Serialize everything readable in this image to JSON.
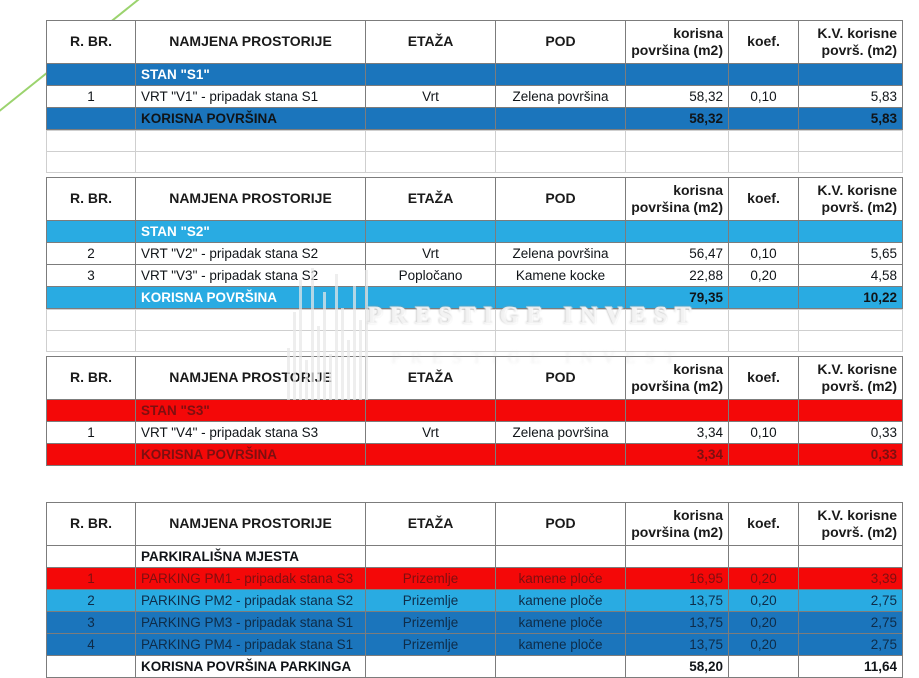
{
  "watermark": {
    "text": "PRESTIGE INVEST"
  },
  "colors": {
    "blue": "#1B75BC",
    "lblue": "#29ABE2",
    "red": "#F40808",
    "white": "#FFFFFF",
    "black": "#101418",
    "maroon": "#7E0F10",
    "navy": "#0E2C49"
  },
  "columns": [
    {
      "label": "R. BR."
    },
    {
      "label": "NAMJENA PROSTORIJE"
    },
    {
      "label": "ETAŽA"
    },
    {
      "label": "POD"
    },
    {
      "label": "korisna\npovršina (m2)"
    },
    {
      "label": "koef."
    },
    {
      "label": "K.V. korisne\npovrš. (m2)"
    }
  ],
  "tables": [
    {
      "name": "table-stan-s1",
      "gap_after": "grid",
      "rows": [
        {
          "type": "section",
          "bg": "blue",
          "color": "white",
          "cells": [
            "",
            "STAN \"S1\"",
            "",
            "",
            "",
            "",
            ""
          ]
        },
        {
          "type": "data",
          "color": "black",
          "cells": [
            "1",
            "VRT \"V1\" - pripadak stana S1",
            "Vrt",
            "Zelena površina",
            "58,32",
            "0,10",
            "5,83"
          ]
        },
        {
          "type": "summary",
          "bg": "blue",
          "color": "black",
          "cells": [
            "",
            "KORISNA POVRŠINA",
            "",
            "",
            "58,32",
            "",
            "5,83"
          ]
        }
      ]
    },
    {
      "name": "table-stan-s2",
      "gap_after": "grid",
      "rows": [
        {
          "type": "section",
          "bg": "lblue",
          "color": "white",
          "cells": [
            "",
            "STAN \"S2\"",
            "",
            "",
            "",
            "",
            ""
          ]
        },
        {
          "type": "data",
          "color": "black",
          "cells": [
            "2",
            "VRT \"V2\" - pripadak stana S2",
            "Vrt",
            "Zelena površina",
            "56,47",
            "0,10",
            "5,65"
          ]
        },
        {
          "type": "data",
          "color": "black",
          "cells": [
            "3",
            "VRT \"V3\" - pripadak stana S2",
            "Popločano",
            "Kamene kocke",
            "22,88",
            "0,20",
            "4,58"
          ]
        },
        {
          "type": "summary",
          "bg": "lblue",
          "color": "white",
          "cell_colors": [
            "",
            "white",
            "",
            "",
            "black",
            "",
            "black"
          ],
          "cells": [
            "",
            "KORISNA POVRŠINA",
            "",
            "",
            "79,35",
            "",
            "10,22"
          ]
        }
      ]
    },
    {
      "name": "table-stan-s3",
      "gap_after": "blank",
      "rows": [
        {
          "type": "section",
          "bg": "red",
          "color": "maroon",
          "cells": [
            "",
            "STAN \"S3\"",
            "",
            "",
            "",
            "",
            ""
          ]
        },
        {
          "type": "data",
          "color": "black",
          "cells": [
            "1",
            "VRT \"V4\" - pripadak stana S3",
            "Vrt",
            "Zelena površina",
            "3,34",
            "0,10",
            "0,33"
          ]
        },
        {
          "type": "summary",
          "bg": "red",
          "color": "maroon",
          "cells": [
            "",
            "KORISNA POVRŠINA",
            "",
            "",
            "3,34",
            "",
            "0,33"
          ]
        }
      ]
    },
    {
      "name": "table-parking",
      "gap_after": "none",
      "rows": [
        {
          "type": "section",
          "color": "black",
          "cells": [
            "",
            "PARKIRALIŠNA MJESTA",
            "",
            "",
            "",
            "",
            ""
          ]
        },
        {
          "type": "data",
          "bg": "red",
          "color": "maroon",
          "cells": [
            "1",
            "PARKING PM1 - pripadak stana S3",
            "Prizemlje",
            "kamene ploče",
            "16,95",
            "0,20",
            "3,39"
          ]
        },
        {
          "type": "data",
          "bg": "lblue",
          "color": "navy",
          "cells": [
            "2",
            "PARKING PM2 - pripadak stana S2",
            "Prizemlje",
            "kamene ploče",
            "13,75",
            "0,20",
            "2,75"
          ]
        },
        {
          "type": "data",
          "bg": "blue",
          "color": "navy",
          "cells": [
            "3",
            "PARKING PM3 - pripadak stana S1",
            "Prizemlje",
            "kamene ploče",
            "13,75",
            "0,20",
            "2,75"
          ]
        },
        {
          "type": "data",
          "bg": "blue",
          "color": "navy",
          "cells": [
            "4",
            "PARKING PM4 - pripadak stana S1",
            "Prizemlje",
            "kamene ploče",
            "13,75",
            "0,20",
            "2,75"
          ]
        },
        {
          "type": "summary",
          "color": "black",
          "cells": [
            "",
            "KORISNA POVRŠINA PARKINGA",
            "",
            "",
            "58,20",
            "",
            "11,64"
          ]
        }
      ]
    }
  ]
}
